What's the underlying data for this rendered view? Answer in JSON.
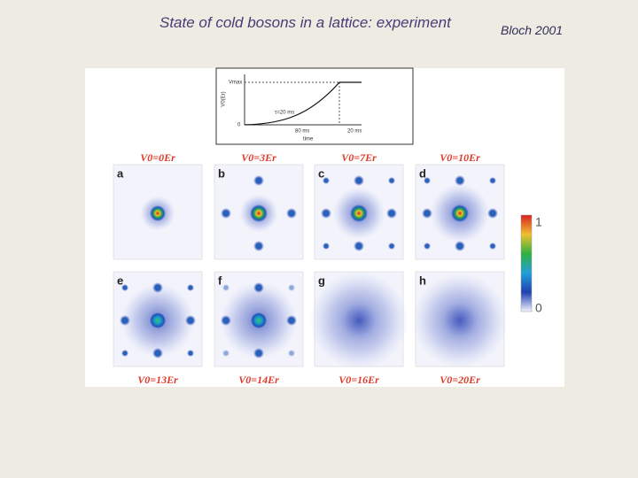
{
  "header": {
    "title": "State of cold bosons in a lattice: experiment",
    "citation": "Bloch 2001"
  },
  "figure": {
    "inset": {
      "y_label": "V0(Er)",
      "max_label": "Vmax",
      "zero_label": "0",
      "tau_label": "τ=20 ms",
      "x_label_1": "80 ms",
      "x_label_2": "20 ms",
      "x_title": "time"
    },
    "panels": [
      {
        "letter": "a",
        "label": "V0=0Er"
      },
      {
        "letter": "b",
        "label": "V0=3Er"
      },
      {
        "letter": "c",
        "label": "V0=7Er"
      },
      {
        "letter": "d",
        "label": "V0=10Er"
      },
      {
        "letter": "e",
        "label": "V0=13Er"
      },
      {
        "letter": "f",
        "label": "V0=14Er"
      },
      {
        "letter": "g",
        "label": "V0=16Er"
      },
      {
        "letter": "h",
        "label": "V0=20Er"
      }
    ],
    "colorbar": {
      "top_label": "1",
      "bottom_label": "0"
    }
  }
}
